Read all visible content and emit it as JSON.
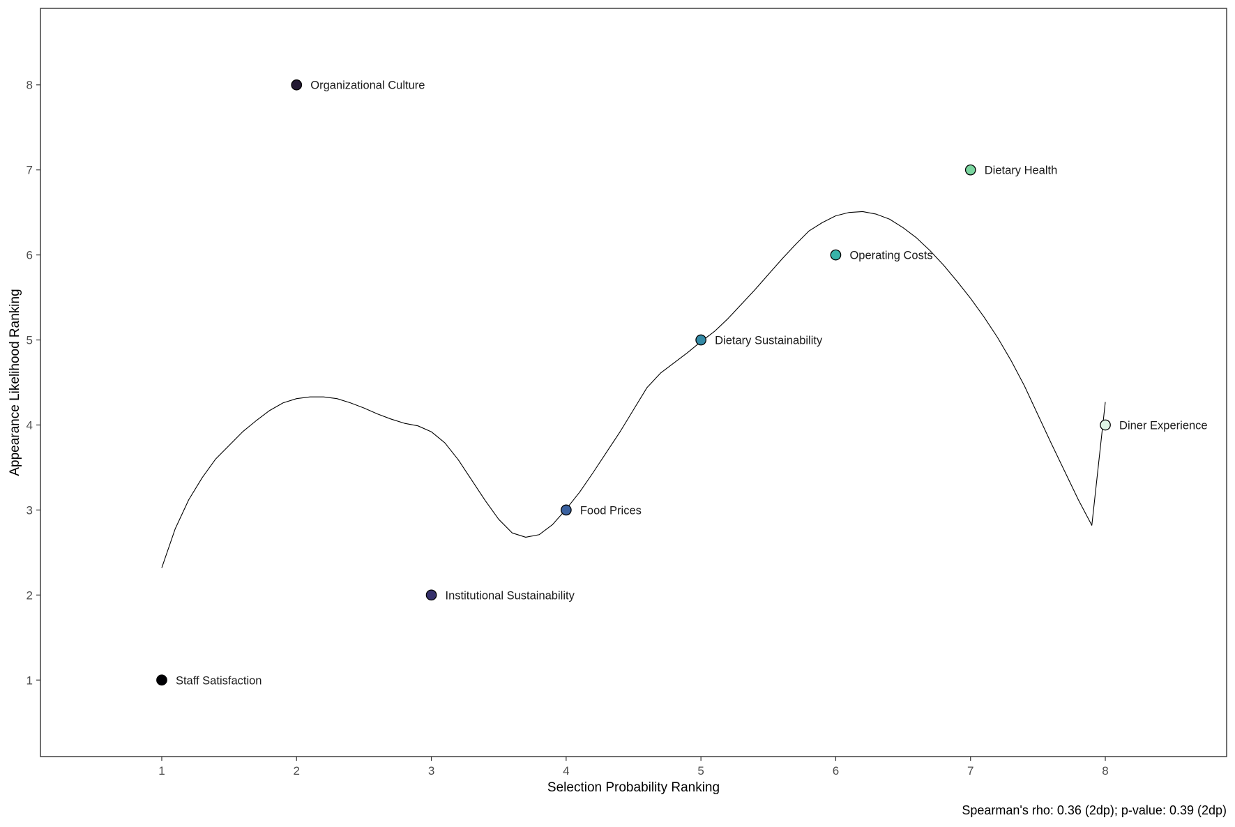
{
  "chart_data": {
    "type": "scatter",
    "title": "",
    "xlabel": "Selection Probability Ranking",
    "ylabel": "Appearance Likelihood Ranking",
    "caption": "Spearman's rho: 0.36 (2dp); p-value: 0.39 (2dp)",
    "xlim": [
      0.1,
      8.9
    ],
    "ylim": [
      0.1,
      8.9
    ],
    "x_ticks": [
      1,
      2,
      3,
      4,
      5,
      6,
      7,
      8
    ],
    "y_ticks": [
      1,
      2,
      3,
      4,
      5,
      6,
      7,
      8
    ],
    "grid": false,
    "legend": "none",
    "points": [
      {
        "label": "Staff Satisfaction",
        "x": 1,
        "y": 1,
        "color": "#000004"
      },
      {
        "label": "Organizational Culture",
        "x": 2,
        "y": 8,
        "color": "#231a33"
      },
      {
        "label": "Institutional Sustainability",
        "x": 3,
        "y": 2,
        "color": "#35306b"
      },
      {
        "label": "Food Prices",
        "x": 4,
        "y": 3,
        "color": "#3a619f"
      },
      {
        "label": "Dietary Sustainability",
        "x": 5,
        "y": 5,
        "color": "#348aa6"
      },
      {
        "label": "Operating Costs",
        "x": 6,
        "y": 6,
        "color": "#38b3a8"
      },
      {
        "label": "Dietary Health",
        "x": 7,
        "y": 7,
        "color": "#7ad59f"
      },
      {
        "label": "Diner Experience",
        "x": 8,
        "y": 4,
        "color": "#def5e5"
      }
    ],
    "smooth_curve": {
      "x": [
        1.0,
        1.1,
        1.2,
        1.3,
        1.4,
        1.5,
        1.6,
        1.7,
        1.8,
        1.9,
        2.0,
        2.1,
        2.2,
        2.3,
        2.4,
        2.5,
        2.6,
        2.7,
        2.8,
        2.9,
        3.0,
        3.1,
        3.2,
        3.3,
        3.4,
        3.5,
        3.6,
        3.7,
        3.8,
        3.9,
        4.0,
        4.1,
        4.2,
        4.3,
        4.4,
        4.5,
        4.6,
        4.7,
        4.8,
        4.9,
        5.0,
        5.1,
        5.2,
        5.3,
        5.4,
        5.5,
        5.6,
        5.7,
        5.8,
        5.9,
        6.0,
        6.1,
        6.2,
        6.3,
        6.4,
        6.5,
        6.6,
        6.7,
        6.8,
        6.9,
        7.0,
        7.1,
        7.2,
        7.3,
        7.4,
        7.5,
        7.6,
        7.7,
        7.8,
        7.9,
        8.0
      ],
      "y": [
        2.32,
        2.78,
        3.12,
        3.38,
        3.6,
        3.76,
        3.92,
        4.05,
        4.17,
        4.26,
        4.31,
        4.33,
        4.33,
        4.31,
        4.26,
        4.2,
        4.13,
        4.07,
        4.02,
        3.99,
        3.92,
        3.79,
        3.59,
        3.35,
        3.11,
        2.89,
        2.73,
        2.68,
        2.71,
        2.83,
        3.01,
        3.21,
        3.44,
        3.68,
        3.92,
        4.18,
        4.44,
        4.61,
        4.73,
        4.85,
        4.98,
        5.1,
        5.25,
        5.42,
        5.59,
        5.77,
        5.95,
        6.12,
        6.28,
        6.38,
        6.46,
        6.5,
        6.51,
        6.48,
        6.42,
        6.32,
        6.2,
        6.05,
        5.88,
        5.69,
        5.49,
        5.27,
        5.03,
        4.76,
        4.46,
        4.12,
        3.78,
        3.45,
        3.12,
        2.82,
        4.27
      ]
    }
  }
}
